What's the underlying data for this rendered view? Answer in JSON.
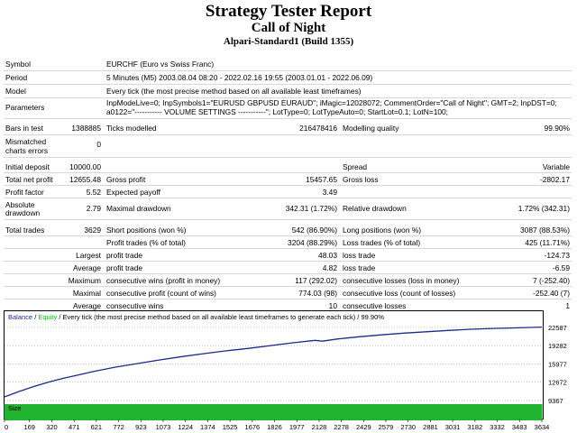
{
  "report": {
    "title": "Strategy Tester Report",
    "subtitle": "Call of Night",
    "build": "Alpari-Standard1 (Build 1355)"
  },
  "info": {
    "symbol_label": "Symbol",
    "symbol_value": "EURCHF (Euro vs Swiss Franc)",
    "period_label": "Period",
    "period_value": "5 Minutes (M5) 2003.08.04 08:20 - 2022.02.16 19:55 (2003.01.01 - 2022.06.09)",
    "model_label": "Model",
    "model_value": "Every tick (the most precise method based on all available least timeframes)",
    "params_label": "Parameters",
    "params_line1": "InpModeLive=0; InpSymbols1=\"EURUSD GBPUSD EURAUD\"; iMagic=12028072; CommentOrder=\"Call of Night\"; GMT=2; InpDST=0;",
    "params_line2": "a0122=\"----------- VOLUME SETTINGS -----------\"; LotType=0; LotTypeAuto=0; StartLot=0.1; LotN=100;",
    "bars_label": "Bars in test",
    "bars_value": "1388885",
    "ticks_label": "Ticks modelled",
    "ticks_value": "216478416",
    "quality_label": "Modelling quality",
    "quality_value": "99.90%",
    "mismatch_label1": "Mismatched",
    "mismatch_label2": "charts errors",
    "mismatch_value": "0"
  },
  "stats": {
    "deposit_label": "Initial deposit",
    "deposit_value": "10000.00",
    "spread_label": "Spread",
    "spread_value": "Variable",
    "netprofit_label": "Total net profit",
    "netprofit_value": "12655.48",
    "grossprofit_label": "Gross profit",
    "grossprofit_value": "15457.65",
    "grossloss_label": "Gross loss",
    "grossloss_value": "-2802.17",
    "pf_label": "Profit factor",
    "pf_value": "5.52",
    "payoff_label": "Expected payoff",
    "payoff_value": "3.49",
    "absdd_label1": "Absolute",
    "absdd_label2": "drawdown",
    "absdd_value": "2.79",
    "maxdd_label": "Maximal drawdown",
    "maxdd_value": "342.31 (1.72%)",
    "reldd_label": "Relative drawdown",
    "reldd_value": "1.72% (342.31)",
    "trades_label": "Total trades",
    "trades_value": "3629",
    "short_label": "Short positions (won %)",
    "short_value": "542 (86.90%)",
    "long_label": "Long positions (won %)",
    "long_value": "3087 (88.53%)",
    "profit_trades_label": "Profit trades (% of total)",
    "profit_trades_value": "3204 (88.29%)",
    "loss_trades_label": "Loss trades (% of total)",
    "loss_trades_value": "425 (11.71%)",
    "largest_label": "Largest",
    "largest_profit_label": "profit trade",
    "largest_profit_value": "48.03",
    "largest_loss_label": "loss trade",
    "largest_loss_value": "-124.73",
    "average_label": "Average",
    "average_profit_label": "profit trade",
    "average_profit_value": "4.82",
    "average_loss_label": "loss trade",
    "average_loss_value": "-6.59",
    "maximum_label": "Maximum",
    "max_cw_label": "consecutive wins (profit in money)",
    "max_cw_value": "117 (292.02)",
    "max_cl_label": "consecutive losses (loss in money)",
    "max_cl_value": "7 (-252.40)",
    "maximal_label": "Maximal",
    "mxl_cp_label": "consecutive profit (count of wins)",
    "mxl_cp_value": "774.03 (98)",
    "mxl_cl_label": "consecutive loss (count of losses)",
    "mxl_cl_value": "-252.40 (7)",
    "average2_label": "Average",
    "avg_cw_label": "consecutive wins",
    "avg_cw_value": "10",
    "avg_cl_label": "consecutive losses",
    "avg_cl_value": "1"
  },
  "chart_data": {
    "type": "line",
    "legend": {
      "balance": "Balance",
      "sep": " / ",
      "equity": "Equity",
      "rest": " / Every tick (the most precise method based on all available least timeframes to generate each tick) / 99.90%"
    },
    "colors": {
      "balance": "#1c2a8c",
      "size": "#20b430",
      "grid": "#aaaaaa"
    },
    "size_label": "Size",
    "yticks": [
      22587,
      19282,
      15977,
      12672,
      9367
    ],
    "xticks": [
      0,
      169,
      320,
      471,
      621,
      772,
      923,
      1073,
      1224,
      1374,
      1525,
      1676,
      1826,
      1977,
      2128,
      2278,
      2429,
      2579,
      2730,
      2881,
      3031,
      3182,
      3332,
      3483,
      3634
    ],
    "xlim": [
      0,
      3634
    ],
    "ylim": [
      8700,
      23400
    ],
    "series": [
      {
        "name": "Balance",
        "x": [
          0,
          100,
          200,
          300,
          400,
          500,
          600,
          750,
          900,
          1050,
          1200,
          1350,
          1500,
          1650,
          1800,
          1950,
          2100,
          2150,
          2250,
          2400,
          2550,
          2700,
          2850,
          3000,
          3150,
          3300,
          3450,
          3634
        ],
        "y": [
          10000,
          11000,
          11900,
          12700,
          13400,
          14000,
          14600,
          15400,
          16050,
          16700,
          17300,
          17850,
          18350,
          18800,
          19300,
          19800,
          20250,
          20100,
          20500,
          20900,
          21250,
          21550,
          21800,
          22050,
          22250,
          22400,
          22500,
          22655
        ]
      }
    ]
  }
}
